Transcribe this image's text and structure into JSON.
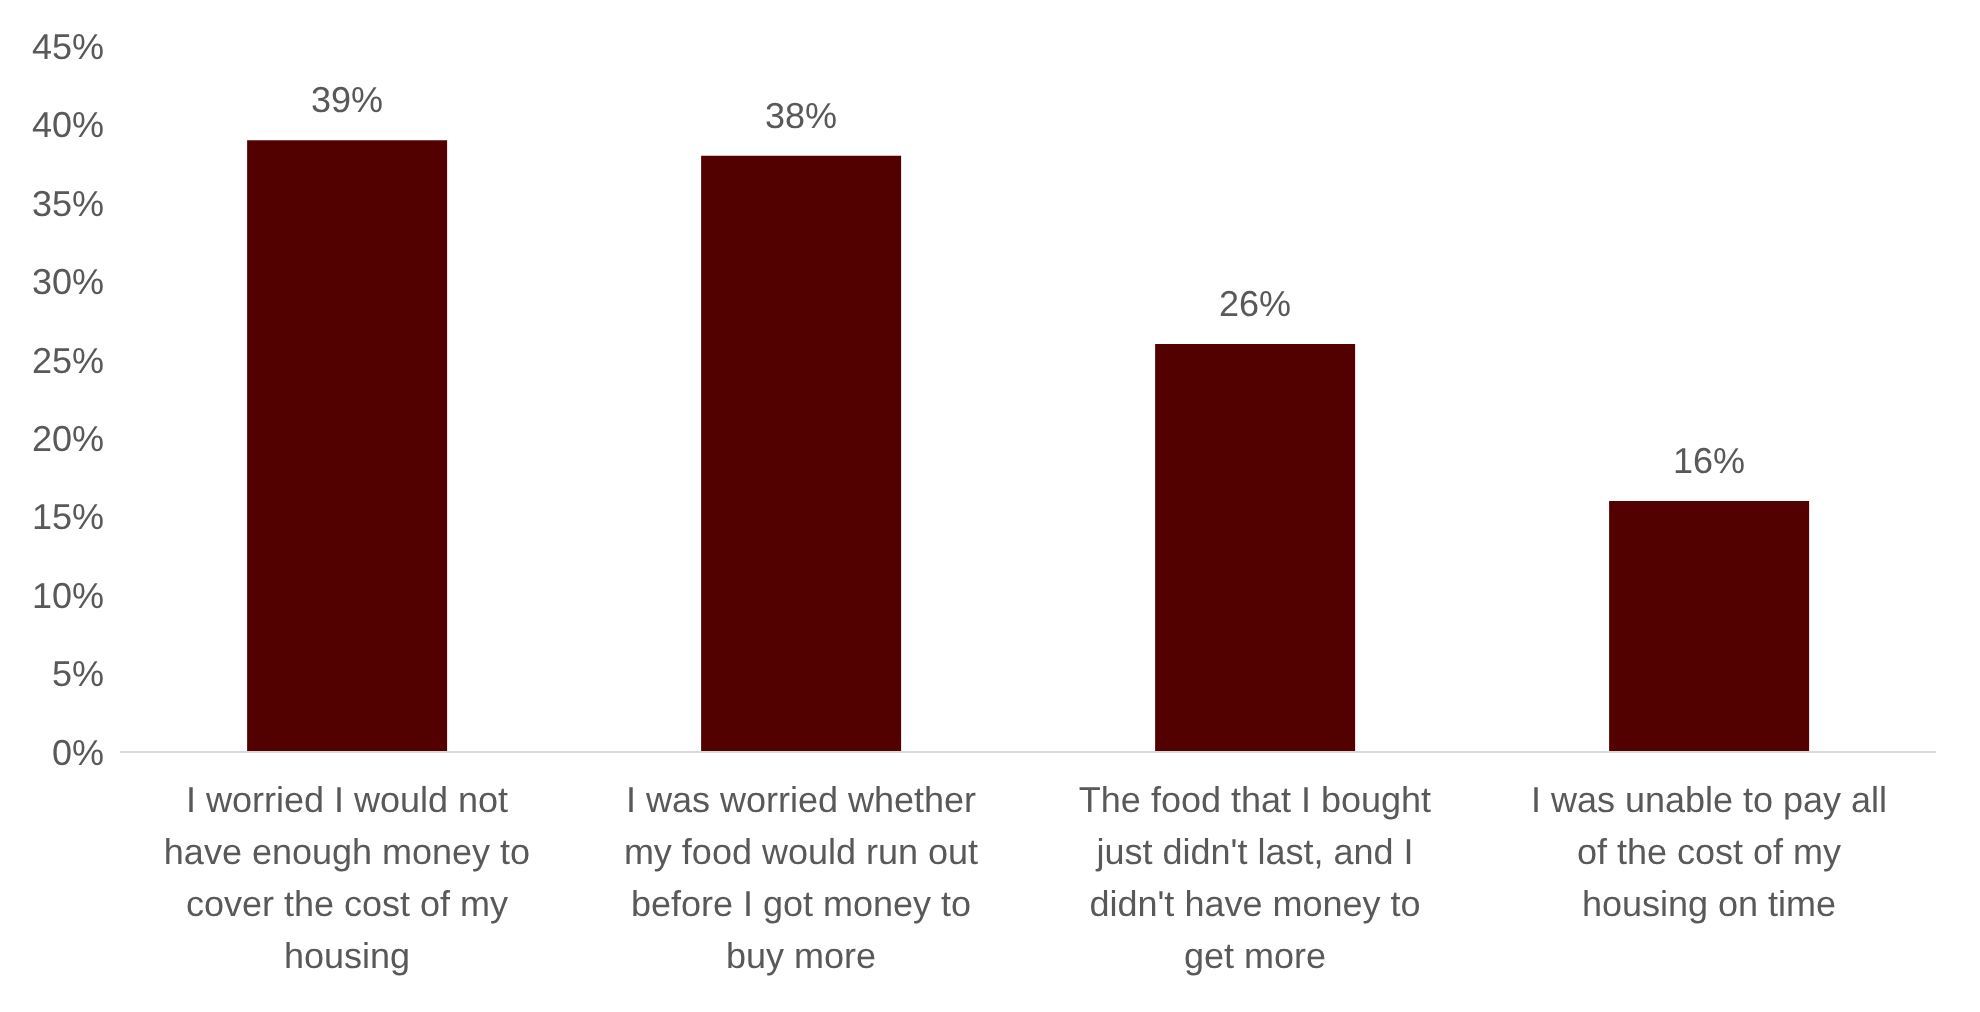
{
  "chart_data": {
    "type": "bar",
    "categories": [
      "I worried I would not have enough money to cover the cost of my housing",
      "I was worried whether my food would run out before I got money to buy more",
      "The food that I bought just didn't last, and I didn't have money to get more",
      "I was unable to pay all of the cost of my housing on time"
    ],
    "values": [
      39,
      38,
      26,
      16
    ],
    "value_labels": [
      "39%",
      "38%",
      "26%",
      "16%"
    ],
    "color": "#530000",
    "ylim": [
      0,
      45
    ],
    "yticks": [
      {
        "value": 0,
        "label": "0%"
      },
      {
        "value": 5,
        "label": "5%"
      },
      {
        "value": 10,
        "label": "10%"
      },
      {
        "value": 15,
        "label": "15%"
      },
      {
        "value": 20,
        "label": "20%"
      },
      {
        "value": 25,
        "label": "25%"
      },
      {
        "value": 30,
        "label": "30%"
      },
      {
        "value": 35,
        "label": "35%"
      },
      {
        "value": 40,
        "label": "40%"
      },
      {
        "value": 45,
        "label": "45%"
      }
    ],
    "grid": false
  }
}
